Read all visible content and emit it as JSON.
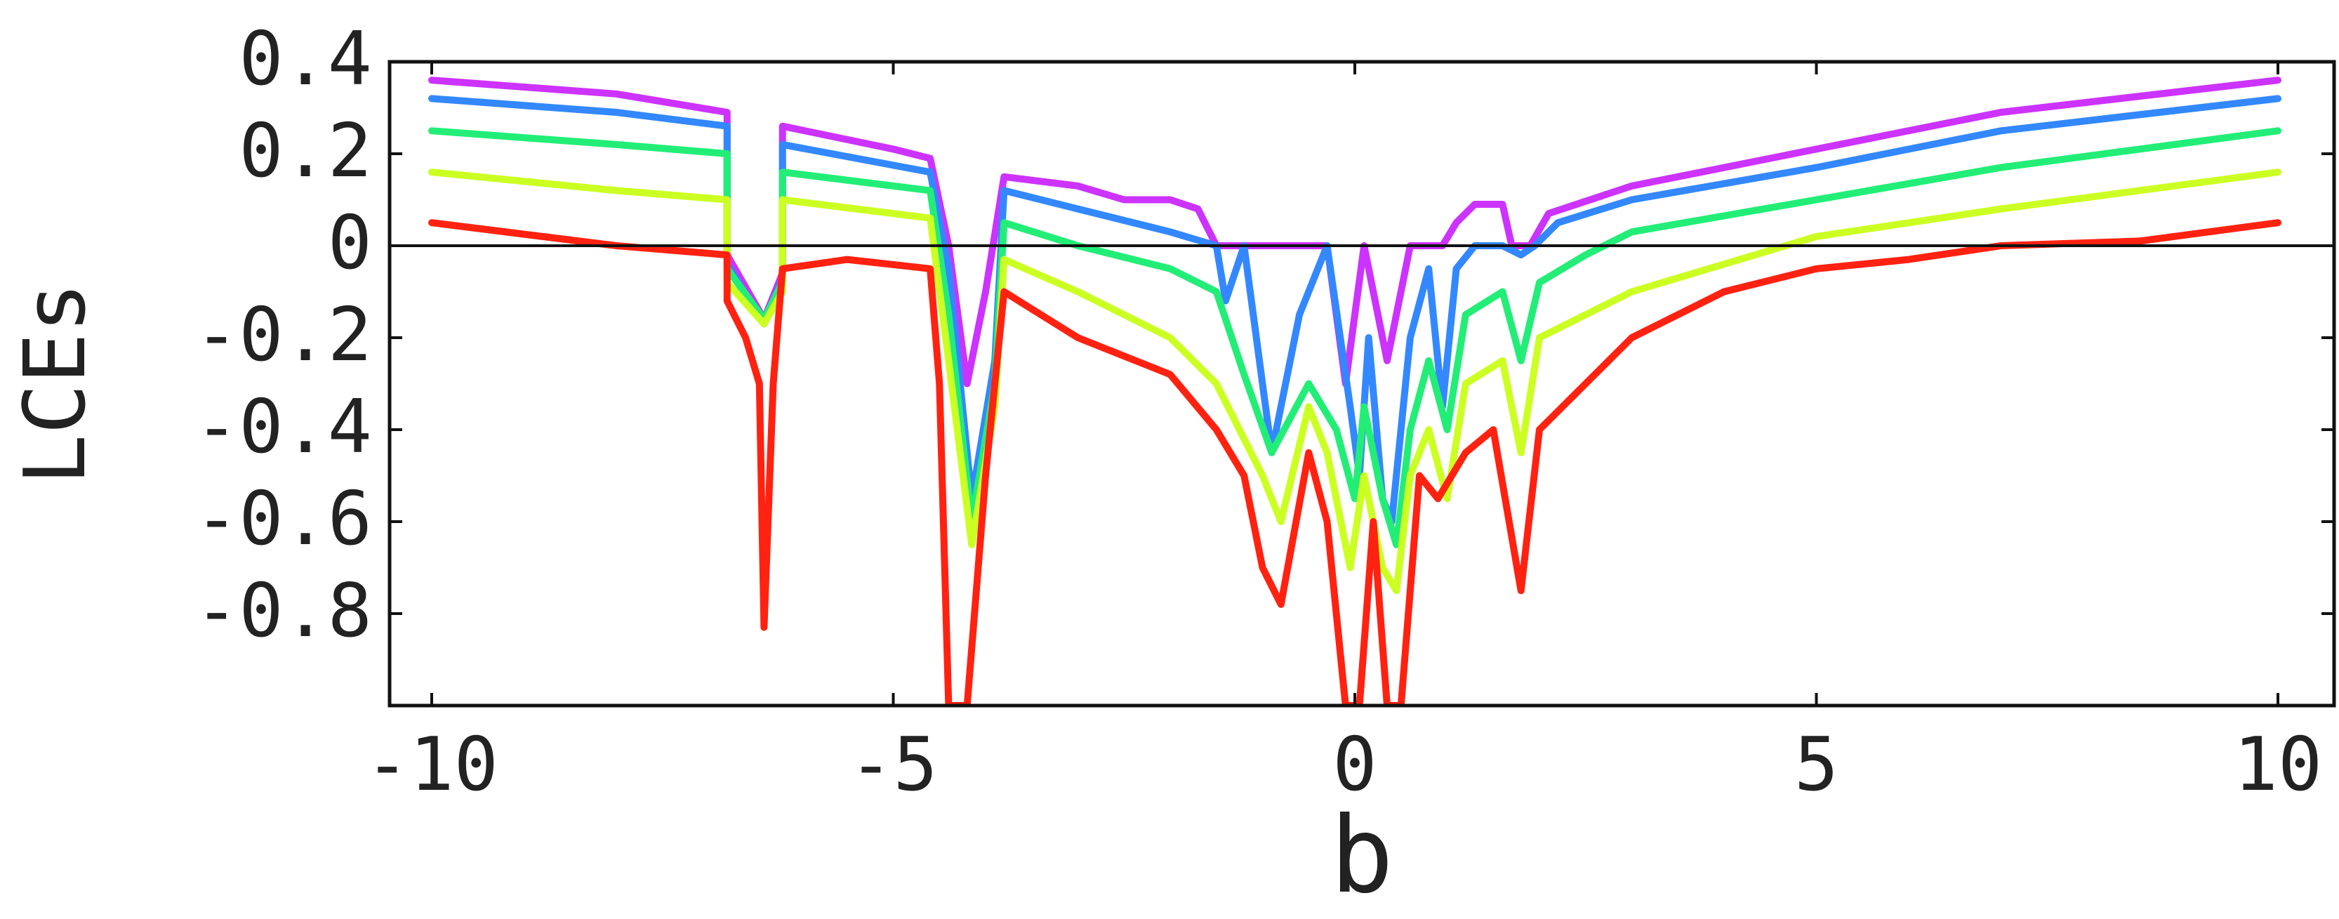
{
  "chart_data": {
    "type": "line",
    "xlabel": "b",
    "ylabel": "LCEs",
    "xlim": [
      -10,
      10
    ],
    "ylim": [
      -1.0,
      0.4
    ],
    "x_ticks": [
      -10,
      -5,
      0,
      5,
      10
    ],
    "x_tick_labels": [
      "-10",
      "-5",
      "0",
      "5",
      "10"
    ],
    "y_ticks": [
      0.4,
      0.2,
      0,
      -0.2,
      -0.4,
      -0.6,
      -0.8
    ],
    "y_tick_labels": [
      "0.4",
      "0.2",
      "0",
      "-0.2",
      "-0.4",
      "-0.6",
      "-0.8"
    ],
    "grid": false,
    "legend": "none",
    "zero_line": true,
    "series": [
      {
        "color": "#cc33ff",
        "points": [
          [
            -10,
            0.36
          ],
          [
            -8,
            0.33
          ],
          [
            -6.8,
            0.29
          ],
          [
            -6.8,
            -0.02
          ],
          [
            -6.4,
            -0.16
          ],
          [
            -6.2,
            -0.06
          ],
          [
            -6.2,
            0.26
          ],
          [
            -5,
            0.21
          ],
          [
            -4.6,
            0.19
          ],
          [
            -4.4,
            0.0
          ],
          [
            -4.2,
            -0.3
          ],
          [
            -4.0,
            -0.1
          ],
          [
            -3.8,
            0.15
          ],
          [
            -3,
            0.13
          ],
          [
            -2.5,
            0.1
          ],
          [
            -2,
            0.1
          ],
          [
            -1.7,
            0.08
          ],
          [
            -1.5,
            0.0
          ],
          [
            -1,
            0.0
          ],
          [
            -0.3,
            0.0
          ],
          [
            -0.1,
            -0.3
          ],
          [
            0.1,
            0.0
          ],
          [
            0.35,
            -0.25
          ],
          [
            0.6,
            0.0
          ],
          [
            0.95,
            0.0
          ],
          [
            1.1,
            0.05
          ],
          [
            1.3,
            0.09
          ],
          [
            1.6,
            0.09
          ],
          [
            1.7,
            0.0
          ],
          [
            1.9,
            0.0
          ],
          [
            2.1,
            0.07
          ],
          [
            3,
            0.13
          ],
          [
            5,
            0.21
          ],
          [
            7,
            0.29
          ],
          [
            10,
            0.36
          ]
        ]
      },
      {
        "color": "#3388ff",
        "points": [
          [
            -10,
            0.32
          ],
          [
            -8,
            0.29
          ],
          [
            -6.8,
            0.26
          ],
          [
            -6.8,
            -0.04
          ],
          [
            -6.4,
            -0.17
          ],
          [
            -6.2,
            -0.07
          ],
          [
            -6.2,
            0.22
          ],
          [
            -4.6,
            0.16
          ],
          [
            -4.4,
            -0.05
          ],
          [
            -4.15,
            -0.55
          ],
          [
            -3.9,
            -0.25
          ],
          [
            -3.8,
            0.12
          ],
          [
            -3,
            0.08
          ],
          [
            -2,
            0.03
          ],
          [
            -1.5,
            0.0
          ],
          [
            -1.4,
            -0.12
          ],
          [
            -1.2,
            0.0
          ],
          [
            -0.9,
            -0.45
          ],
          [
            -0.6,
            -0.15
          ],
          [
            -0.3,
            0.0
          ],
          [
            -0.05,
            -0.35
          ],
          [
            0.05,
            -0.5
          ],
          [
            0.15,
            -0.2
          ],
          [
            0.3,
            -0.55
          ],
          [
            0.4,
            -0.6
          ],
          [
            0.6,
            -0.2
          ],
          [
            0.8,
            -0.05
          ],
          [
            0.95,
            -0.35
          ],
          [
            1.1,
            -0.05
          ],
          [
            1.3,
            0.0
          ],
          [
            1.6,
            0.0
          ],
          [
            1.8,
            -0.02
          ],
          [
            1.95,
            0.0
          ],
          [
            2.2,
            0.05
          ],
          [
            3,
            0.1
          ],
          [
            5,
            0.17
          ],
          [
            7,
            0.25
          ],
          [
            10,
            0.32
          ]
        ]
      },
      {
        "color": "#22ee77",
        "points": [
          [
            -10,
            0.25
          ],
          [
            -8,
            0.22
          ],
          [
            -6.8,
            0.2
          ],
          [
            -6.8,
            -0.05
          ],
          [
            -6.4,
            -0.16
          ],
          [
            -6.2,
            -0.08
          ],
          [
            -6.2,
            0.16
          ],
          [
            -4.6,
            0.12
          ],
          [
            -4.4,
            -0.15
          ],
          [
            -4.15,
            -0.6
          ],
          [
            -3.9,
            -0.3
          ],
          [
            -3.8,
            0.05
          ],
          [
            -3,
            0.0
          ],
          [
            -2,
            -0.05
          ],
          [
            -1.5,
            -0.1
          ],
          [
            -1.2,
            -0.28
          ],
          [
            -0.9,
            -0.45
          ],
          [
            -0.5,
            -0.3
          ],
          [
            -0.2,
            -0.4
          ],
          [
            0.0,
            -0.55
          ],
          [
            0.1,
            -0.35
          ],
          [
            0.3,
            -0.55
          ],
          [
            0.45,
            -0.65
          ],
          [
            0.6,
            -0.4
          ],
          [
            0.8,
            -0.25
          ],
          [
            1.0,
            -0.4
          ],
          [
            1.2,
            -0.15
          ],
          [
            1.6,
            -0.1
          ],
          [
            1.8,
            -0.25
          ],
          [
            2.0,
            -0.08
          ],
          [
            2.5,
            -0.02
          ],
          [
            3,
            0.03
          ],
          [
            5,
            0.1
          ],
          [
            7,
            0.17
          ],
          [
            10,
            0.25
          ]
        ]
      },
      {
        "color": "#ccff22",
        "points": [
          [
            -10,
            0.16
          ],
          [
            -8,
            0.12
          ],
          [
            -6.8,
            0.1
          ],
          [
            -6.8,
            -0.08
          ],
          [
            -6.4,
            -0.17
          ],
          [
            -6.2,
            -0.1
          ],
          [
            -6.2,
            0.1
          ],
          [
            -4.6,
            0.06
          ],
          [
            -4.4,
            -0.25
          ],
          [
            -4.15,
            -0.65
          ],
          [
            -3.9,
            -0.35
          ],
          [
            -3.8,
            -0.03
          ],
          [
            -3,
            -0.1
          ],
          [
            -2,
            -0.2
          ],
          [
            -1.5,
            -0.3
          ],
          [
            -1.0,
            -0.5
          ],
          [
            -0.8,
            -0.6
          ],
          [
            -0.5,
            -0.35
          ],
          [
            -0.3,
            -0.45
          ],
          [
            -0.05,
            -0.7
          ],
          [
            0.1,
            -0.5
          ],
          [
            0.3,
            -0.7
          ],
          [
            0.45,
            -0.75
          ],
          [
            0.6,
            -0.5
          ],
          [
            0.8,
            -0.4
          ],
          [
            1.0,
            -0.55
          ],
          [
            1.2,
            -0.3
          ],
          [
            1.6,
            -0.25
          ],
          [
            1.8,
            -0.45
          ],
          [
            2.0,
            -0.2
          ],
          [
            3,
            -0.1
          ],
          [
            5,
            0.02
          ],
          [
            7,
            0.08
          ],
          [
            10,
            0.16
          ]
        ]
      },
      {
        "color": "#ff2211",
        "points": [
          [
            -10,
            0.05
          ],
          [
            -8,
            0.0
          ],
          [
            -6.8,
            -0.02
          ],
          [
            -6.8,
            -0.12
          ],
          [
            -6.6,
            -0.2
          ],
          [
            -6.45,
            -0.3
          ],
          [
            -6.4,
            -0.83
          ],
          [
            -6.3,
            -0.3
          ],
          [
            -6.2,
            -0.05
          ],
          [
            -5.5,
            -0.03
          ],
          [
            -4.6,
            -0.05
          ],
          [
            -4.5,
            -0.3
          ],
          [
            -4.4,
            -1.0
          ],
          [
            -4.2,
            -1.0
          ],
          [
            -4.0,
            -0.5
          ],
          [
            -3.8,
            -0.1
          ],
          [
            -3,
            -0.2
          ],
          [
            -2,
            -0.28
          ],
          [
            -1.5,
            -0.4
          ],
          [
            -1.2,
            -0.5
          ],
          [
            -1.0,
            -0.7
          ],
          [
            -0.8,
            -0.78
          ],
          [
            -0.5,
            -0.45
          ],
          [
            -0.3,
            -0.6
          ],
          [
            -0.1,
            -1.0
          ],
          [
            0.05,
            -1.0
          ],
          [
            0.2,
            -0.6
          ],
          [
            0.35,
            -1.0
          ],
          [
            0.5,
            -1.0
          ],
          [
            0.7,
            -0.5
          ],
          [
            0.9,
            -0.55
          ],
          [
            1.2,
            -0.45
          ],
          [
            1.5,
            -0.4
          ],
          [
            1.8,
            -0.75
          ],
          [
            2.0,
            -0.4
          ],
          [
            2.5,
            -0.3
          ],
          [
            3,
            -0.2
          ],
          [
            4,
            -0.1
          ],
          [
            5,
            -0.05
          ],
          [
            6,
            -0.03
          ],
          [
            7,
            0.0
          ],
          [
            8.5,
            0.01
          ],
          [
            10,
            0.05
          ]
        ]
      }
    ]
  }
}
